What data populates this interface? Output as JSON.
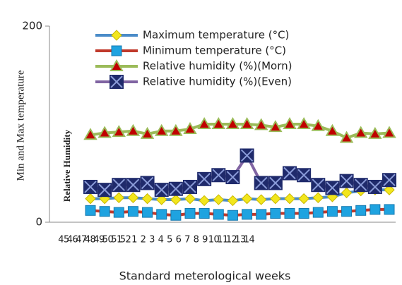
{
  "chart_data": {
    "type": "line",
    "y_label": "Min and Max temperature",
    "y_label_inner": "Relative Humidity",
    "x_label": "Standard meterological weeks",
    "categories": [
      "45",
      "46",
      "47",
      "48",
      "49",
      "50",
      "51",
      "52",
      "1",
      "2",
      "3",
      "4",
      "5",
      "6",
      "7",
      "8",
      "9",
      "10",
      "11",
      "12",
      "13",
      "14"
    ],
    "ylim": [
      0,
      200
    ],
    "yticks": [
      0,
      200
    ],
    "series": [
      {
        "name": "Maximum temperature (°C)",
        "color": "#4a8bc8",
        "marker": "diamond",
        "marker_color": "#f2e61c",
        "values": [
          24,
          24,
          25,
          25,
          24,
          23,
          23,
          24,
          22,
          23,
          22,
          24,
          23,
          24,
          24,
          24,
          25,
          26,
          30,
          32,
          33,
          33
        ]
      },
      {
        "name": "Minimum temperature (°C)",
        "color": "#c0392b",
        "marker": "square",
        "marker_color": "#1fa3e0",
        "values": [
          12,
          11,
          10,
          11,
          10,
          8,
          7,
          9,
          9,
          8,
          7,
          8,
          8,
          9,
          9,
          9,
          10,
          11,
          11,
          12,
          13,
          13
        ]
      },
      {
        "name": "Relative humidity (%)(Morn)",
        "color": "#9bbb59",
        "marker": "triangle",
        "marker_color": "#c00000",
        "values": [
          89,
          91,
          92,
          93,
          90,
          93,
          93,
          95,
          100,
          100,
          100,
          100,
          99,
          97,
          100,
          100,
          98,
          93,
          86,
          91,
          90,
          91
        ]
      },
      {
        "name": "Relative humidity (%)(Even)",
        "color": "#8064a2",
        "marker": "xsquare",
        "marker_color": "#1f2a6b",
        "values": [
          36,
          33,
          38,
          38,
          40,
          33,
          34,
          36,
          44,
          48,
          46,
          68,
          40,
          40,
          50,
          48,
          38,
          35,
          42,
          38,
          36,
          43
        ]
      }
    ]
  }
}
